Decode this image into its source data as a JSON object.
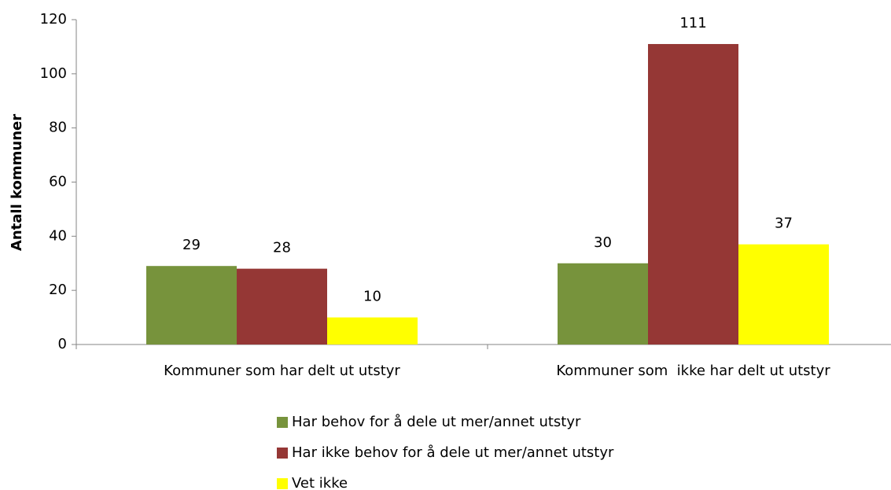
{
  "chart_data": {
    "type": "bar",
    "ylabel": "Antall kommuner",
    "categories": [
      "Kommuner som har delt ut utstyr",
      "Kommuner som  ikke har delt ut utstyr"
    ],
    "series": [
      {
        "name": "Har behov for å dele ut mer/annet utstyr",
        "color": "#77933c",
        "values": [
          29,
          30
        ]
      },
      {
        "name": "Har ikke behov for å dele ut mer/annet utstyr",
        "color": "#953735",
        "values": [
          28,
          111
        ]
      },
      {
        "name": "Vet ikke",
        "color": "#ffff00",
        "values": [
          10,
          37
        ]
      }
    ],
    "ylim": [
      0,
      120
    ],
    "yticks": [
      0,
      20,
      40,
      60,
      80,
      100,
      120
    ],
    "grid": false,
    "data_labels": true,
    "legend": "bottom"
  }
}
